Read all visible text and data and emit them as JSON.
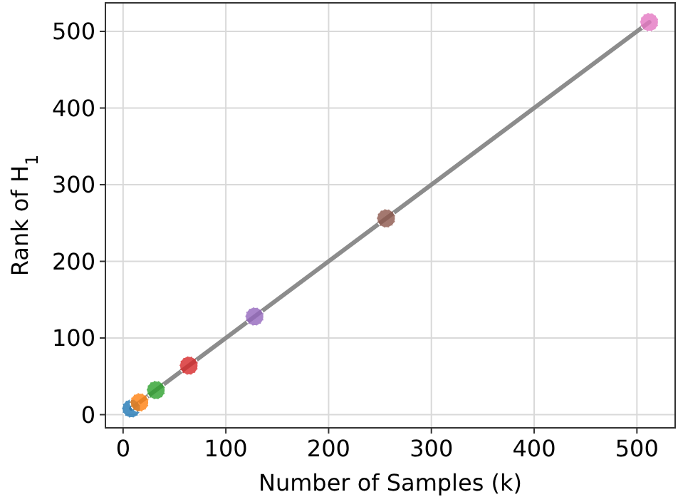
{
  "chart_data": {
    "type": "scatter",
    "xlabel": "Number of Samples (k)",
    "ylabel": "Rank of H$_{1}$",
    "xlim": [
      -17.2,
      537.2
    ],
    "ylim": [
      -17.2,
      537.2
    ],
    "xticks": [
      0,
      100,
      200,
      300,
      400,
      500
    ],
    "yticks": [
      0,
      100,
      200,
      300,
      400,
      500
    ],
    "grid": true,
    "marker": "circle",
    "series": [
      {
        "type": "line",
        "color": "#8c8c8c",
        "x": [
          8,
          512
        ],
        "values": [
          8,
          512
        ],
        "marker": "none",
        "line_style": "solid"
      },
      {
        "x": [
          8,
          16,
          32,
          64,
          128,
          256,
          512
        ],
        "values": [
          8,
          16,
          32,
          64,
          128,
          256,
          512
        ],
        "colors": [
          "#1f77b4",
          "#ff7f0e",
          "#2ca02c",
          "#d62728",
          "#9467bd",
          "#8c564b",
          "#e377c2"
        ]
      }
    ]
  }
}
